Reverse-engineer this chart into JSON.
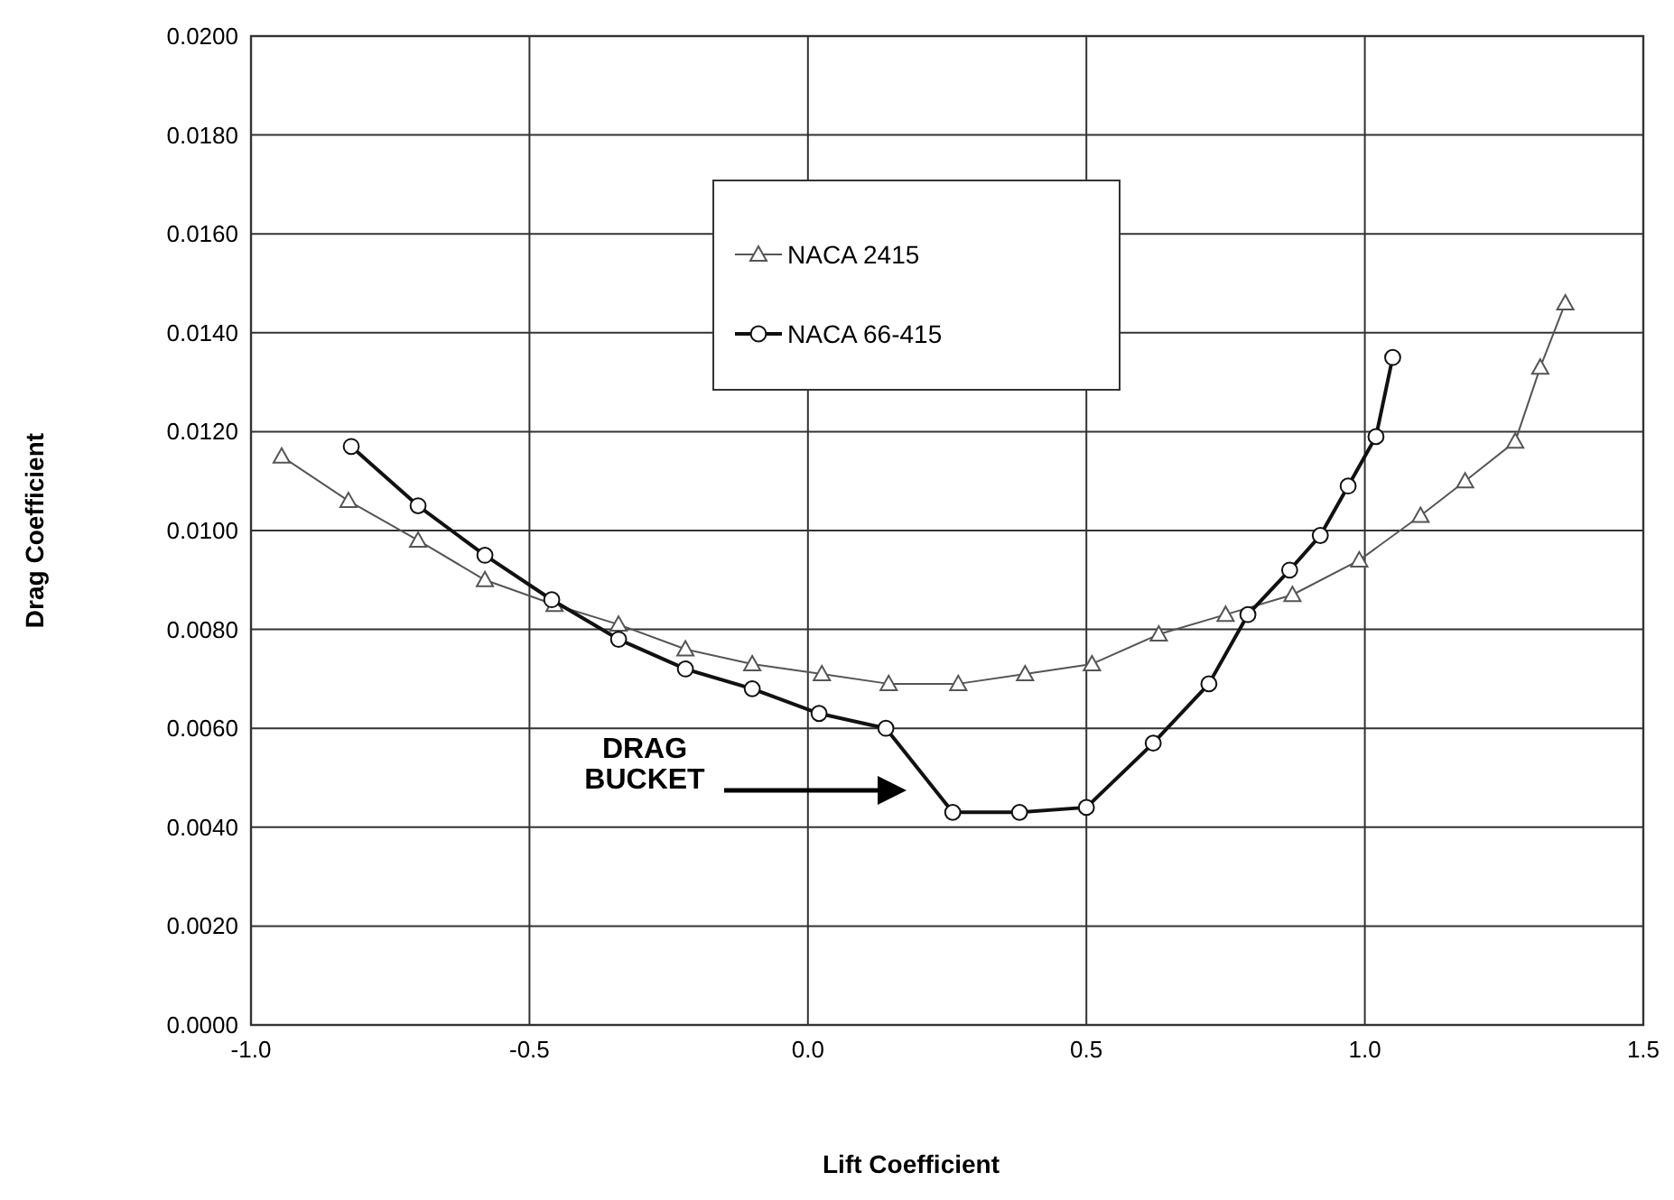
{
  "chart_data": {
    "type": "line",
    "xlabel": "Lift Coefficient",
    "ylabel": "Drag Coefficient",
    "xlim": [
      -1.0,
      1.5
    ],
    "xticks": [
      {
        "value": -1.0,
        "label": "-1.0"
      },
      {
        "value": -0.5,
        "label": "-0.5"
      },
      {
        "value": 0,
        "label": "0.0"
      },
      {
        "value": 0.5,
        "label": "0.5"
      },
      {
        "value": 1.0,
        "label": "1.0"
      },
      {
        "value": 1.5,
        "label": "1.5"
      }
    ],
    "ylim": [
      0,
      0.02
    ],
    "yticks": [
      {
        "value": 0,
        "label": "0.0000"
      },
      {
        "value": 0.002,
        "label": "0.0020"
      },
      {
        "value": 0.004,
        "label": "0.0040"
      },
      {
        "value": 0.006,
        "label": "0.0060"
      },
      {
        "value": 0.008,
        "label": "0.0080"
      },
      {
        "value": 0.01,
        "label": "0.0100"
      },
      {
        "value": 0.012,
        "label": "0.0120"
      },
      {
        "value": 0.014,
        "label": "0.0140"
      },
      {
        "value": 0.016,
        "label": "0.0160"
      },
      {
        "value": 0.018,
        "label": "0.0180"
      },
      {
        "value": 0.02,
        "label": "0.0200"
      }
    ],
    "grid": true,
    "legend": "top",
    "line_style": "solid",
    "series": [
      {
        "name": "NACA 2415",
        "color": "#555555",
        "marker": "triangle",
        "x": [
          -0.945,
          -0.825,
          -0.7,
          -0.58,
          -0.455,
          -0.34,
          -0.22,
          -0.1,
          0.025,
          0.145,
          0.27,
          0.39,
          0.51,
          0.63,
          0.75,
          0.87,
          0.99,
          1.1,
          1.18,
          1.27,
          1.315,
          1.36
        ],
        "values": [
          0.0115,
          0.0106,
          0.0098,
          0.009,
          0.0085,
          0.0081,
          0.0076,
          0.0073,
          0.0071,
          0.0069,
          0.0069,
          0.0071,
          0.0073,
          0.0079,
          0.0083,
          0.0087,
          0.0094,
          0.0103,
          0.011,
          0.0118,
          0.0133,
          0.0146
        ]
      },
      {
        "name": "NACA 66-415",
        "color": "#111111",
        "marker": "circle",
        "x": [
          -0.82,
          -0.7,
          -0.58,
          -0.46,
          -0.34,
          -0.22,
          -0.1,
          0.02,
          0.14,
          0.26,
          0.38,
          0.5,
          0.62,
          0.72,
          0.79,
          0.865,
          0.92,
          0.97,
          1.02,
          1.05
        ],
        "values": [
          0.0117,
          0.0105,
          0.0095,
          0.0086,
          0.0078,
          0.0072,
          0.0068,
          0.0063,
          0.006,
          0.0043,
          0.0043,
          0.0044,
          0.0057,
          0.0069,
          0.0083,
          0.0092,
          0.0099,
          0.0109,
          0.0119,
          0.0135
        ]
      }
    ],
    "annotations": [
      "DRAG\nBUCKET"
    ]
  }
}
